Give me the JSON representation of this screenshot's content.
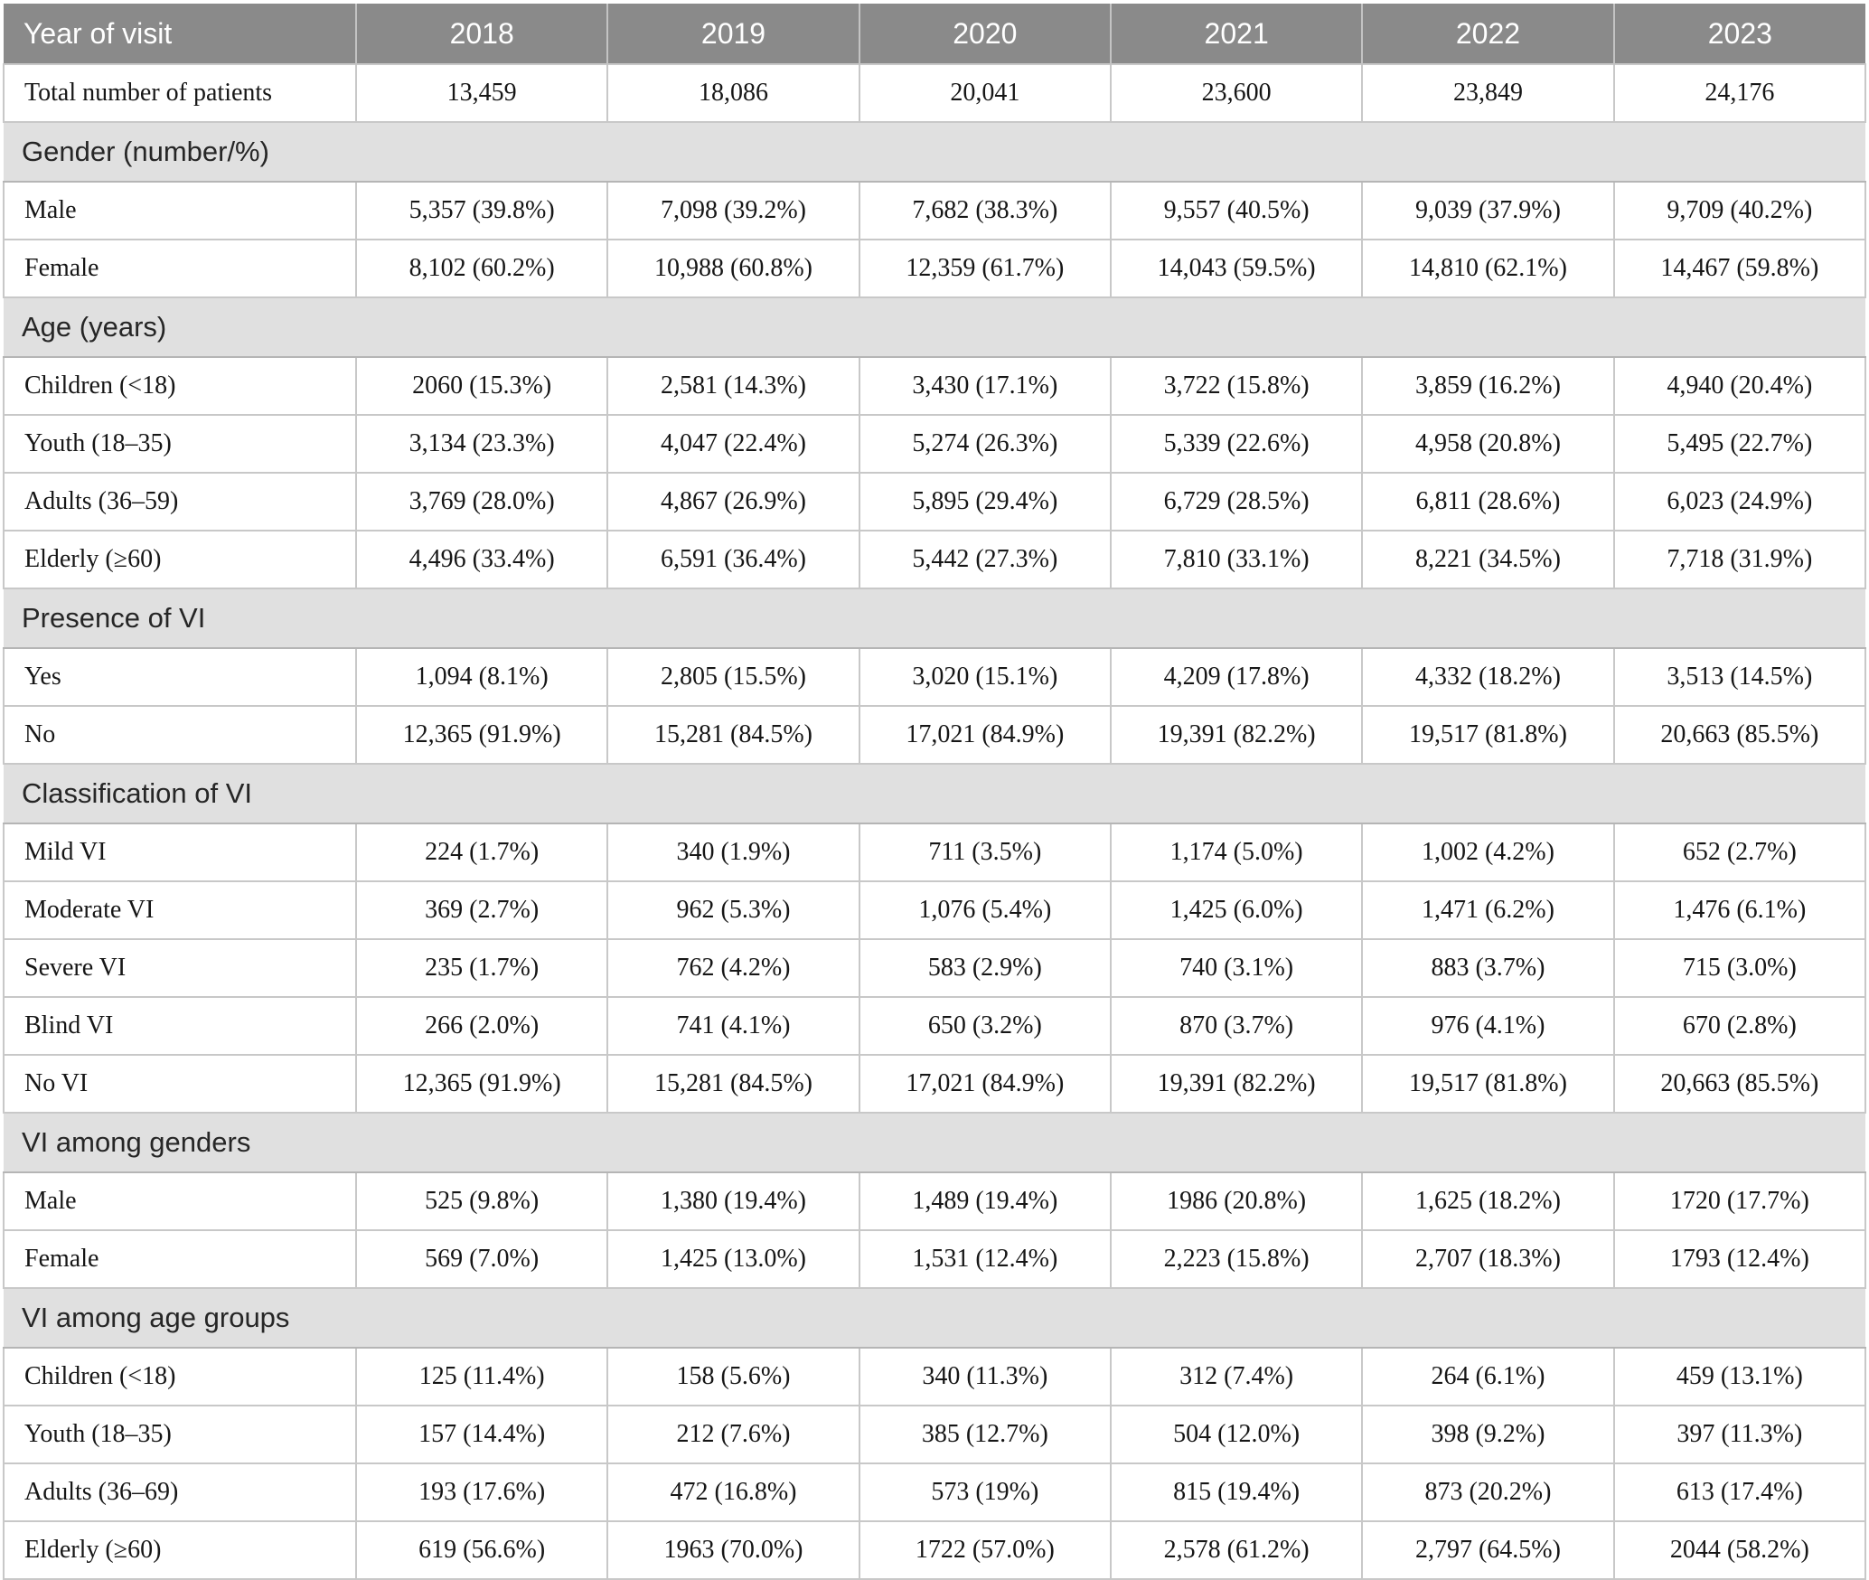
{
  "colors": {
    "header_bg": "#8a8a8a",
    "header_text": "#ffffff",
    "section_band_bg": "#e0e0e0",
    "body_text": "#161616",
    "cell_border": "#c8c8c8",
    "band_border": "#b5b5b5"
  },
  "chart_data": {
    "type": "table",
    "header": {
      "label": "Year of visit",
      "years": [
        "2018",
        "2019",
        "2020",
        "2021",
        "2022",
        "2023"
      ]
    },
    "total_row": {
      "label": "Total number of patients",
      "values": [
        "13,459",
        "18,086",
        "20,041",
        "23,600",
        "23,849",
        "24,176"
      ]
    },
    "sections": [
      {
        "title": "Gender (number/%)",
        "rows": [
          {
            "label": "Male",
            "values": [
              "5,357 (39.8%)",
              "7,098 (39.2%)",
              "7,682 (38.3%)",
              "9,557 (40.5%)",
              "9,039 (37.9%)",
              "9,709 (40.2%)"
            ]
          },
          {
            "label": "Female",
            "values": [
              "8,102 (60.2%)",
              "10,988 (60.8%)",
              "12,359 (61.7%)",
              "14,043 (59.5%)",
              "14,810 (62.1%)",
              "14,467 (59.8%)"
            ]
          }
        ]
      },
      {
        "title": "Age (years)",
        "rows": [
          {
            "label": "Children (<18)",
            "values": [
              "2060 (15.3%)",
              "2,581 (14.3%)",
              "3,430 (17.1%)",
              "3,722 (15.8%)",
              "3,859 (16.2%)",
              "4,940 (20.4%)"
            ]
          },
          {
            "label": "Youth (18–35)",
            "values": [
              "3,134 (23.3%)",
              "4,047 (22.4%)",
              "5,274 (26.3%)",
              "5,339 (22.6%)",
              "4,958 (20.8%)",
              "5,495 (22.7%)"
            ]
          },
          {
            "label": "Adults (36–59)",
            "values": [
              "3,769 (28.0%)",
              "4,867 (26.9%)",
              "5,895 (29.4%)",
              "6,729 (28.5%)",
              "6,811 (28.6%)",
              "6,023 (24.9%)"
            ]
          },
          {
            "label": "Elderly (≥60)",
            "values": [
              "4,496 (33.4%)",
              "6,591 (36.4%)",
              "5,442 (27.3%)",
              "7,810 (33.1%)",
              "8,221 (34.5%)",
              "7,718 (31.9%)"
            ]
          }
        ]
      },
      {
        "title": "Presence of VI",
        "rows": [
          {
            "label": "Yes",
            "values": [
              "1,094 (8.1%)",
              "2,805 (15.5%)",
              "3,020 (15.1%)",
              "4,209 (17.8%)",
              "4,332 (18.2%)",
              "3,513 (14.5%)"
            ]
          },
          {
            "label": "No",
            "values": [
              "12,365 (91.9%)",
              "15,281 (84.5%)",
              "17,021 (84.9%)",
              "19,391 (82.2%)",
              "19,517 (81.8%)",
              "20,663 (85.5%)"
            ]
          }
        ]
      },
      {
        "title": "Classification of VI",
        "rows": [
          {
            "label": "Mild VI",
            "values": [
              "224 (1.7%)",
              "340 (1.9%)",
              "711 (3.5%)",
              "1,174 (5.0%)",
              "1,002 (4.2%)",
              "652 (2.7%)"
            ]
          },
          {
            "label": "Moderate VI",
            "values": [
              "369 (2.7%)",
              "962 (5.3%)",
              "1,076 (5.4%)",
              "1,425 (6.0%)",
              "1,471 (6.2%)",
              "1,476 (6.1%)"
            ]
          },
          {
            "label": "Severe VI",
            "values": [
              "235 (1.7%)",
              "762 (4.2%)",
              "583 (2.9%)",
              "740 (3.1%)",
              "883 (3.7%)",
              "715 (3.0%)"
            ]
          },
          {
            "label": "Blind VI",
            "values": [
              "266 (2.0%)",
              "741 (4.1%)",
              "650 (3.2%)",
              "870 (3.7%)",
              "976 (4.1%)",
              "670 (2.8%)"
            ]
          },
          {
            "label": "No VI",
            "values": [
              "12,365 (91.9%)",
              "15,281 (84.5%)",
              "17,021 (84.9%)",
              "19,391 (82.2%)",
              "19,517 (81.8%)",
              "20,663 (85.5%)"
            ]
          }
        ]
      },
      {
        "title": "VI among genders",
        "rows": [
          {
            "label": "Male",
            "values": [
              "525 (9.8%)",
              "1,380 (19.4%)",
              "1,489 (19.4%)",
              "1986 (20.8%)",
              "1,625 (18.2%)",
              "1720 (17.7%)"
            ]
          },
          {
            "label": "Female",
            "values": [
              "569 (7.0%)",
              "1,425 (13.0%)",
              "1,531 (12.4%)",
              "2,223 (15.8%)",
              "2,707 (18.3%)",
              "1793 (12.4%)"
            ]
          }
        ]
      },
      {
        "title": "VI among age groups",
        "rows": [
          {
            "label": "Children (<18)",
            "values": [
              "125 (11.4%)",
              "158 (5.6%)",
              "340 (11.3%)",
              "312 (7.4%)",
              "264 (6.1%)",
              "459 (13.1%)"
            ]
          },
          {
            "label": "Youth (18–35)",
            "values": [
              "157 (14.4%)",
              "212 (7.6%)",
              "385 (12.7%)",
              "504 (12.0%)",
              "398 (9.2%)",
              "397 (11.3%)"
            ]
          },
          {
            "label": "Adults (36–69)",
            "values": [
              "193 (17.6%)",
              "472 (16.8%)",
              "573 (19%)",
              "815 (19.4%)",
              "873 (20.2%)",
              "613 (17.4%)"
            ]
          },
          {
            "label": "Elderly (≥60)",
            "values": [
              "619 (56.6%)",
              "1963 (70.0%)",
              "1722 (57.0%)",
              "2,578 (61.2%)",
              "2,797 (64.5%)",
              "2044 (58.2%)"
            ]
          }
        ]
      }
    ]
  }
}
